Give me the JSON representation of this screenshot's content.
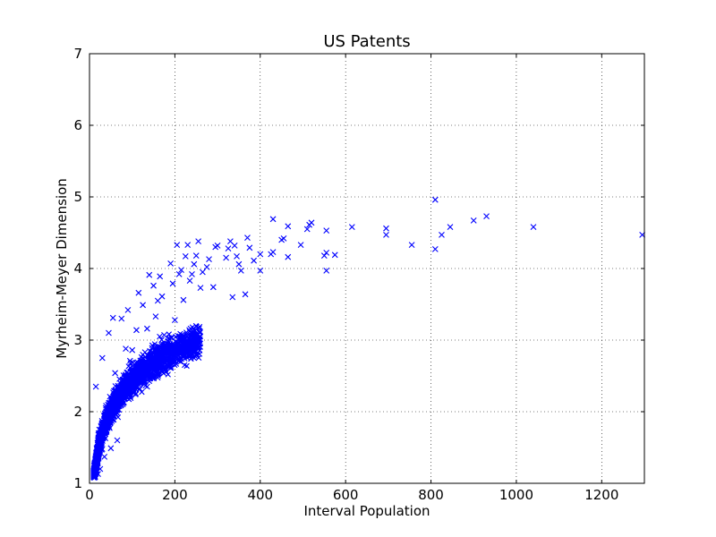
{
  "chart_data": {
    "type": "scatter",
    "title": "US Patents",
    "xlabel": "Interval Population",
    "ylabel": "Myrheim-Meyer Dimension",
    "xlim": [
      0,
      1300
    ],
    "ylim": [
      1,
      7
    ],
    "xticks": [
      0,
      200,
      400,
      600,
      800,
      1000,
      1200
    ],
    "yticks": [
      1,
      2,
      3,
      4,
      5,
      6,
      7
    ],
    "xtick_labels": [
      "0",
      "200",
      "400",
      "600",
      "800",
      "1000",
      "1200"
    ],
    "ytick_labels": [
      "1",
      "2",
      "3",
      "4",
      "5",
      "6",
      "7"
    ],
    "grid": true,
    "marker": "x",
    "color": "#0000ff",
    "series": [
      {
        "points": [
          [
            810,
            4.96
          ],
          [
            930,
            4.73
          ],
          [
            900,
            4.67
          ],
          [
            845,
            4.58
          ],
          [
            825,
            4.47
          ],
          [
            810,
            4.27
          ],
          [
            1040,
            4.58
          ],
          [
            1295,
            4.47
          ],
          [
            755,
            4.33
          ],
          [
            695,
            4.56
          ],
          [
            695,
            4.47
          ],
          [
            615,
            4.58
          ],
          [
            575,
            4.19
          ],
          [
            555,
            4.53
          ],
          [
            555,
            4.22
          ],
          [
            550,
            4.18
          ],
          [
            555,
            3.97
          ],
          [
            520,
            4.64
          ],
          [
            515,
            4.61
          ],
          [
            510,
            4.55
          ],
          [
            495,
            4.33
          ],
          [
            465,
            4.59
          ],
          [
            455,
            4.42
          ],
          [
            450,
            4.4
          ],
          [
            465,
            4.16
          ],
          [
            430,
            4.69
          ],
          [
            430,
            4.23
          ],
          [
            425,
            4.2
          ],
          [
            400,
            4.2
          ],
          [
            400,
            3.97
          ],
          [
            385,
            4.11
          ],
          [
            375,
            4.29
          ],
          [
            370,
            4.43
          ],
          [
            365,
            3.64
          ],
          [
            335,
            3.6
          ],
          [
            340,
            4.32
          ],
          [
            345,
            4.17
          ],
          [
            350,
            4.06
          ],
          [
            355,
            3.97
          ],
          [
            330,
            4.38
          ],
          [
            325,
            4.28
          ],
          [
            320,
            4.15
          ],
          [
            300,
            4.32
          ],
          [
            295,
            4.3
          ],
          [
            290,
            3.74
          ],
          [
            280,
            4.13
          ],
          [
            275,
            4.02
          ],
          [
            265,
            3.95
          ],
          [
            260,
            3.73
          ],
          [
            255,
            4.38
          ],
          [
            250,
            4.18
          ],
          [
            245,
            4.06
          ],
          [
            240,
            3.92
          ],
          [
            235,
            3.83
          ],
          [
            230,
            4.33
          ],
          [
            225,
            4.17
          ],
          [
            220,
            3.56
          ],
          [
            215,
            3.98
          ],
          [
            210,
            3.92
          ],
          [
            205,
            4.33
          ],
          [
            200,
            3.28
          ],
          [
            195,
            3.79
          ],
          [
            190,
            4.07
          ],
          [
            185,
            2.65
          ],
          [
            180,
            2.86
          ],
          [
            180,
            2.72
          ],
          [
            175,
            3.07
          ],
          [
            170,
            3.61
          ],
          [
            165,
            3.89
          ],
          [
            160,
            3.55
          ],
          [
            155,
            3.33
          ],
          [
            150,
            3.76
          ],
          [
            140,
            3.91
          ],
          [
            135,
            3.16
          ],
          [
            135,
            2.35
          ],
          [
            130,
            2.83
          ],
          [
            125,
            3.49
          ],
          [
            120,
            2.52
          ],
          [
            115,
            3.66
          ],
          [
            110,
            3.14
          ],
          [
            100,
            2.86
          ],
          [
            95,
            2.71
          ],
          [
            90,
            2.47
          ],
          [
            85,
            2.88
          ],
          [
            80,
            2.24
          ],
          [
            70,
            2.08
          ],
          [
            65,
            1.6
          ],
          [
            60,
            2.54
          ],
          [
            55,
            1.94
          ],
          [
            50,
            1.49
          ],
          [
            45,
            2.02
          ],
          [
            40,
            1.72
          ],
          [
            35,
            1.37
          ],
          [
            30,
            1.48
          ],
          [
            25,
            1.2
          ],
          [
            20,
            1.13
          ],
          [
            15,
            1.25
          ],
          [
            15,
            2.35
          ],
          [
            30,
            2.75
          ],
          [
            45,
            3.1
          ],
          [
            55,
            3.31
          ],
          [
            75,
            3.3
          ],
          [
            90,
            3.42
          ]
        ]
      }
    ]
  }
}
